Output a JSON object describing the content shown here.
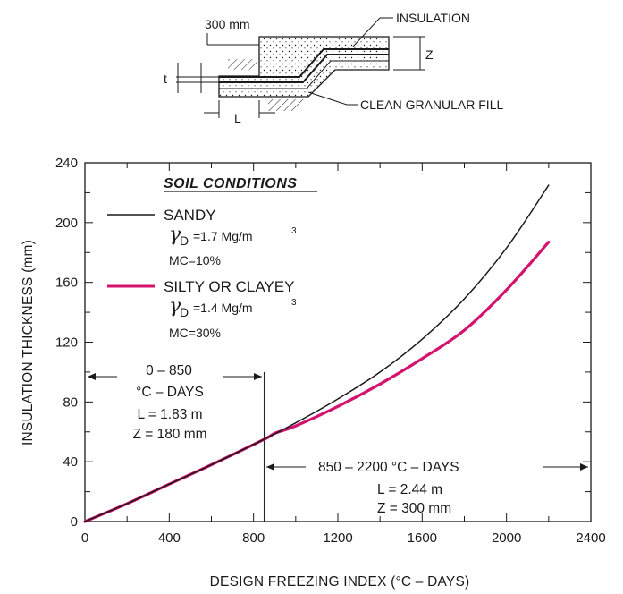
{
  "chart_data": {
    "type": "line",
    "xlabel": "DESIGN FREEZING INDEX (°C – DAYS)",
    "ylabel": "INSULATION THICKNESS (mm)",
    "xlim": [
      0,
      2400
    ],
    "ylim": [
      0,
      240
    ],
    "x_ticks": [
      0,
      400,
      800,
      1200,
      1600,
      2000,
      2400
    ],
    "x_tick_labels": [
      "0",
      "400",
      "800",
      "1200",
      "1600",
      "2000",
      "2400"
    ],
    "y_ticks": [
      0,
      40,
      80,
      120,
      160,
      200,
      240
    ],
    "y_tick_labels": [
      "0",
      "40",
      "80",
      "120",
      "160",
      "200",
      "240"
    ],
    "grid": false,
    "series": [
      {
        "name": "SANDY",
        "color": "#1a1a1a",
        "x": [
          0,
          200,
          400,
          600,
          850,
          1000,
          1200,
          1400,
          1600,
          1800,
          2000,
          2200
        ],
        "y": [
          0,
          12,
          25,
          38,
          55,
          66,
          82,
          100,
          122,
          149,
          183,
          225
        ]
      },
      {
        "name": "SILTY OR CLAYEY",
        "color": "#d4136e",
        "x": [
          0,
          200,
          400,
          600,
          850,
          900,
          1000,
          1200,
          1400,
          1600,
          1800,
          2000,
          2200
        ],
        "y": [
          0,
          12,
          25,
          38,
          55,
          59,
          64,
          77,
          92,
          109,
          128,
          155,
          187
        ]
      }
    ],
    "legend": {
      "placement": "top-left",
      "heading": "SOIL CONDITIONS",
      "entries": [
        {
          "name": "SANDY",
          "density_label": "=1.7  Mg/m",
          "density_exp": "3",
          "mc": "MC=10%"
        },
        {
          "name": "SILTY OR CLAYEY",
          "density_label": "=1.4  Mg/m",
          "density_exp": "3",
          "mc": "MC=30%"
        }
      ],
      "gamma": "γ",
      "gamma_sub": "D"
    },
    "divider_x": 850,
    "annotations": {
      "range1": {
        "line1": "0 – 850",
        "line2": "°C – DAYS",
        "line3": "L = 1.83 m",
        "line4": "Z = 180 mm"
      },
      "range2": {
        "line1": "850 – 2200  °C – DAYS",
        "line2": "L = 2.44 m",
        "line3": "Z = 300 mm"
      }
    }
  },
  "diagram": {
    "dim_300": "300 mm",
    "insulation": "INSULATION",
    "fill": "CLEAN GRANULAR FILL",
    "t": "t",
    "z": "Z",
    "l": "L"
  },
  "colors": {
    "ink": "#1a1a1a",
    "magenta": "#d4136e"
  }
}
